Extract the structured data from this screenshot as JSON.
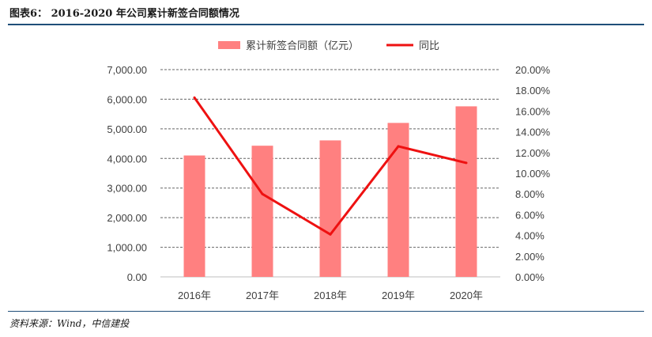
{
  "figure": {
    "title": "图表6： 2016-2020 年公司累计新签合同额情况",
    "source": "资料来源：Wind，中信建投"
  },
  "chart_data": {
    "type": "bar",
    "categories": [
      "2016年",
      "2017年",
      "2018年",
      "2019年",
      "2020年"
    ],
    "series": [
      {
        "name": "累计新签合同额（亿元）",
        "type": "bar",
        "axis": "left",
        "values": [
          4100,
          4430,
          4610,
          5200,
          5760
        ],
        "color": "#ff8080"
      },
      {
        "name": "同比",
        "type": "line",
        "axis": "right",
        "values": [
          17.3,
          8.0,
          4.1,
          12.6,
          11.0
        ],
        "color": "#ee1111"
      }
    ],
    "y_left": {
      "lim": [
        0,
        7000
      ],
      "ticks": [
        "0.00",
        "1,000.00",
        "2,000.00",
        "3,000.00",
        "4,000.00",
        "5,000.00",
        "6,000.00",
        "7,000.00"
      ]
    },
    "y_right": {
      "lim": [
        0,
        20
      ],
      "ticks": [
        "0.00%",
        "2.00%",
        "4.00%",
        "6.00%",
        "8.00%",
        "10.00%",
        "12.00%",
        "14.00%",
        "16.00%",
        "18.00%",
        "20.00%"
      ]
    },
    "legend_position": "top",
    "grid": "dashed horizontal"
  }
}
